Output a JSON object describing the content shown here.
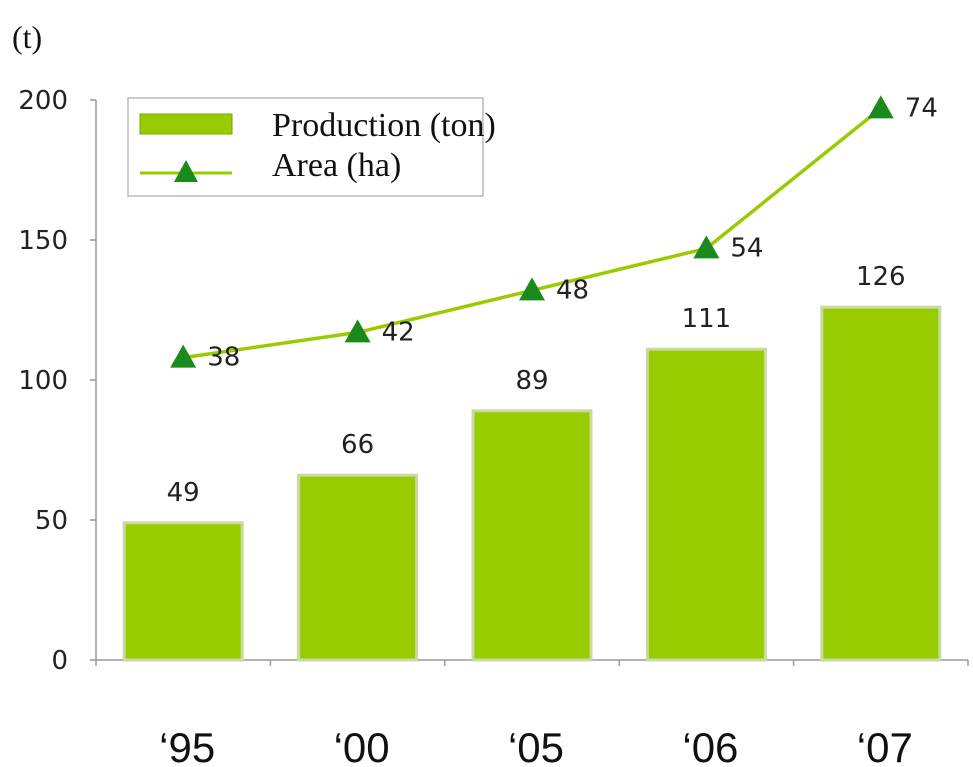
{
  "chart_data": {
    "type": "bar",
    "categories": [
      "‘95",
      "‘00",
      "‘05",
      "‘06",
      "‘07"
    ],
    "ylabel": "(t)",
    "ylim": [
      0,
      200
    ],
    "yticks": [
      "0",
      "50",
      "100",
      "150",
      "200"
    ],
    "grid": false,
    "legend_position": "top-left",
    "series": [
      {
        "name": "Production (ton)",
        "type": "bar",
        "values": [
          49,
          66,
          89,
          111,
          126
        ],
        "labels": [
          "49",
          "66",
          "89",
          "111",
          "126"
        ],
        "color": "#99cc00"
      },
      {
        "name": "Area (ha)",
        "type": "line",
        "marker": "triangle",
        "values": [
          38,
          42,
          48,
          54,
          74
        ],
        "labels": [
          "38",
          "42",
          "48",
          "54",
          "74"
        ],
        "plotted_on_left_axis_as": [
          108,
          117,
          132,
          147,
          197
        ],
        "color": "#99cc00",
        "marker_color": "#1a8a1a"
      }
    ]
  }
}
